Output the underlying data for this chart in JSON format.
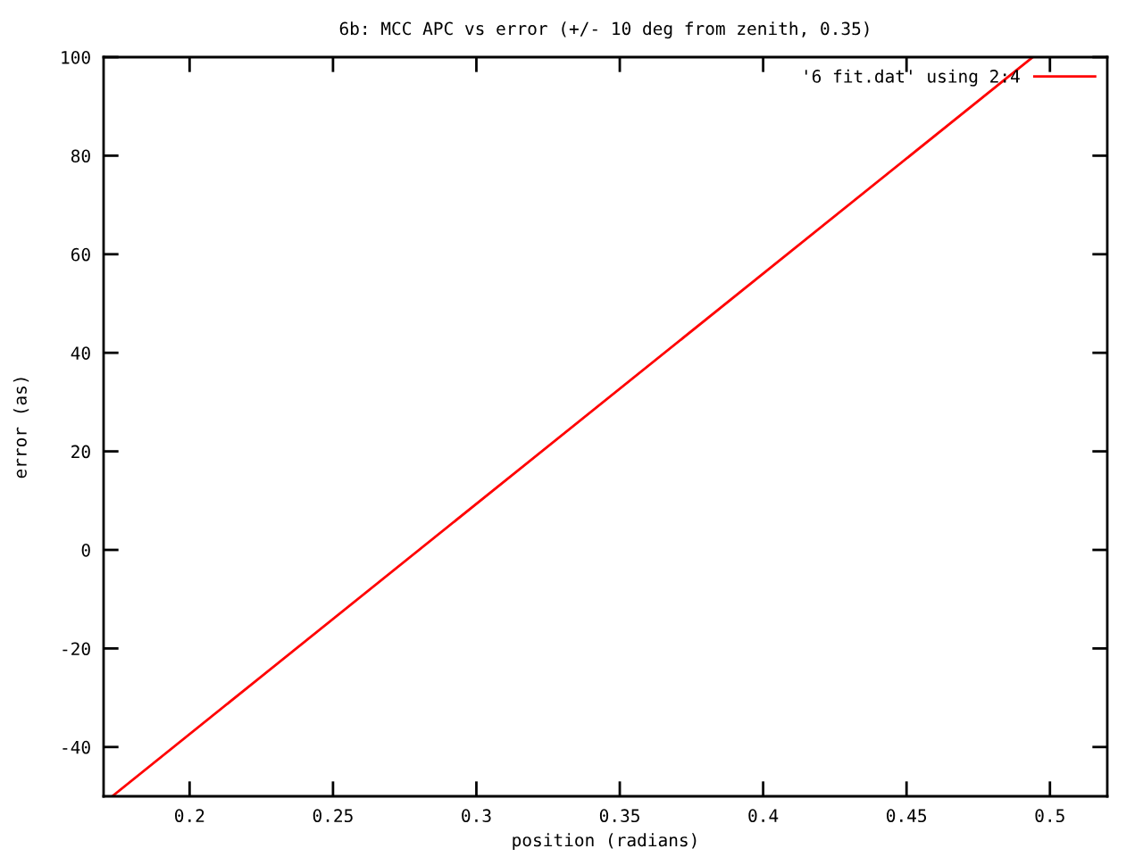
{
  "chart_data": {
    "type": "line",
    "title": "6b: MCC APC vs error (+/- 10 deg from zenith, 0.35)",
    "xlabel": "position (radians)",
    "ylabel": "error (as)",
    "x": [
      0.173,
      0.494
    ],
    "series": [
      {
        "name": "'6 fit.dat' using 2:4",
        "color": "#ff0000",
        "values": [
          -50,
          100
        ]
      }
    ],
    "xlim": [
      0.17,
      0.52
    ],
    "xticks": [
      0.2,
      0.25,
      0.3,
      0.35,
      0.4,
      0.45,
      0.5
    ],
    "ylim": [
      -50,
      100
    ],
    "yticks": [
      -40,
      -20,
      0,
      20,
      40,
      60,
      80,
      100
    ],
    "grid": false,
    "legend": "top right",
    "marker": "none",
    "line_style": "solid"
  }
}
